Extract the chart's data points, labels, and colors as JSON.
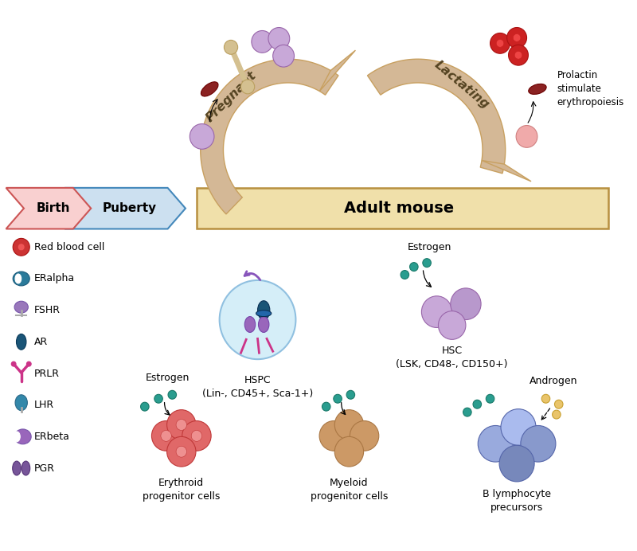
{
  "figsize": [
    8.0,
    6.92
  ],
  "dpi": 100,
  "bg_color": "#ffffff",
  "arrow_color": "#d4b896",
  "arrow_edge": "#c8a060",
  "birth_color": "#f9d0d0",
  "birth_edge": "#cc5555",
  "puberty_color": "#cce0f0",
  "puberty_edge": "#4488bb",
  "adult_color": "#f0e0aa",
  "adult_edge": "#b89040",
  "estrogen_color": "#2a9d8f",
  "androgen_color": "#e9c46a",
  "cell_purple_light": "#c8a8d8",
  "cell_purple_mid": "#b090cc",
  "cell_purple_dark": "#9966bb",
  "cell_red": "#cc3333",
  "cell_pink": "#e88888",
  "cell_beige": "#d4a878",
  "cell_blue_light": "#aabbdd",
  "cell_blue_mid": "#8899cc",
  "cell_darkred": "#8b2222",
  "bone_color": "#d4c090",
  "text_pregnant": "Pregnant",
  "text_lactating": "Lactating",
  "text_prolactin": "Prolactin\nstimulate\nerythropoiesis",
  "text_birth": "Birth",
  "text_puberty": "Puberty",
  "text_adult": "Adult mouse",
  "hspc_label": "HSPC\n(Lin-, CD45+, Sca-1+)",
  "hsc_label": "HSC\n(LSK, CD48-, CD150+)",
  "erythroid_label": "Erythroid\nprogenitor cells",
  "myeloid_label": "Myeloid\nprogenitor cells",
  "blymphocyte_label": "B lymphocyte\nprecursors"
}
